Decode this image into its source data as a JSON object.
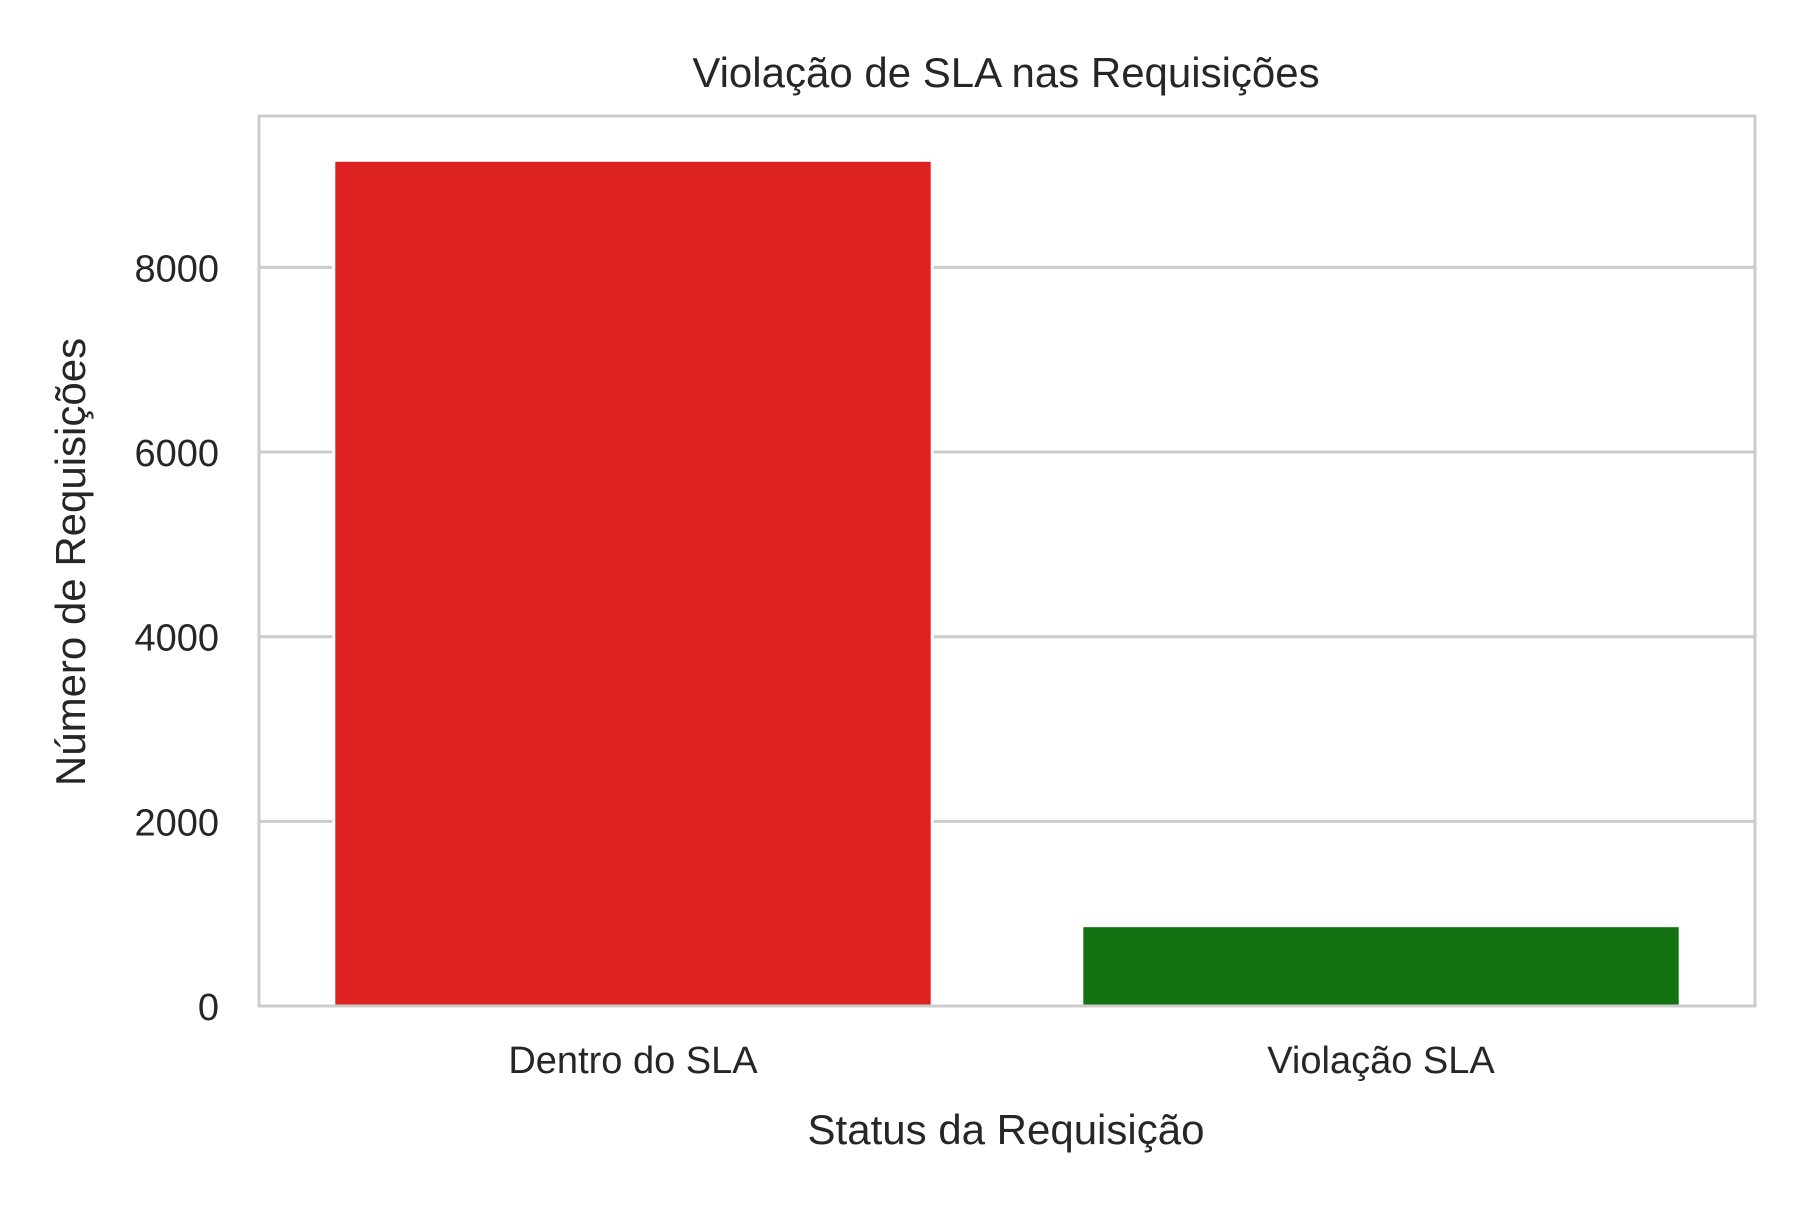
{
  "chart_data": {
    "type": "bar",
    "title": "Violação de SLA nas Requisições",
    "xlabel": "Status da Requisição",
    "ylabel": "Número de Requisições",
    "categories": [
      "Dentro do SLA",
      "Violação SLA"
    ],
    "values": [
      9160,
      870
    ],
    "colors": [
      "#de2121",
      "#127212"
    ],
    "ylim": [
      0,
      9640
    ],
    "yticks": [
      0,
      2000,
      4000,
      6000,
      8000
    ],
    "grid": true,
    "grid_axis": "y",
    "legend": "none"
  },
  "style": {
    "grid_color": "#cccccc",
    "spine_color": "#cccccc",
    "text_color": "#262626",
    "background": "#ffffff"
  }
}
